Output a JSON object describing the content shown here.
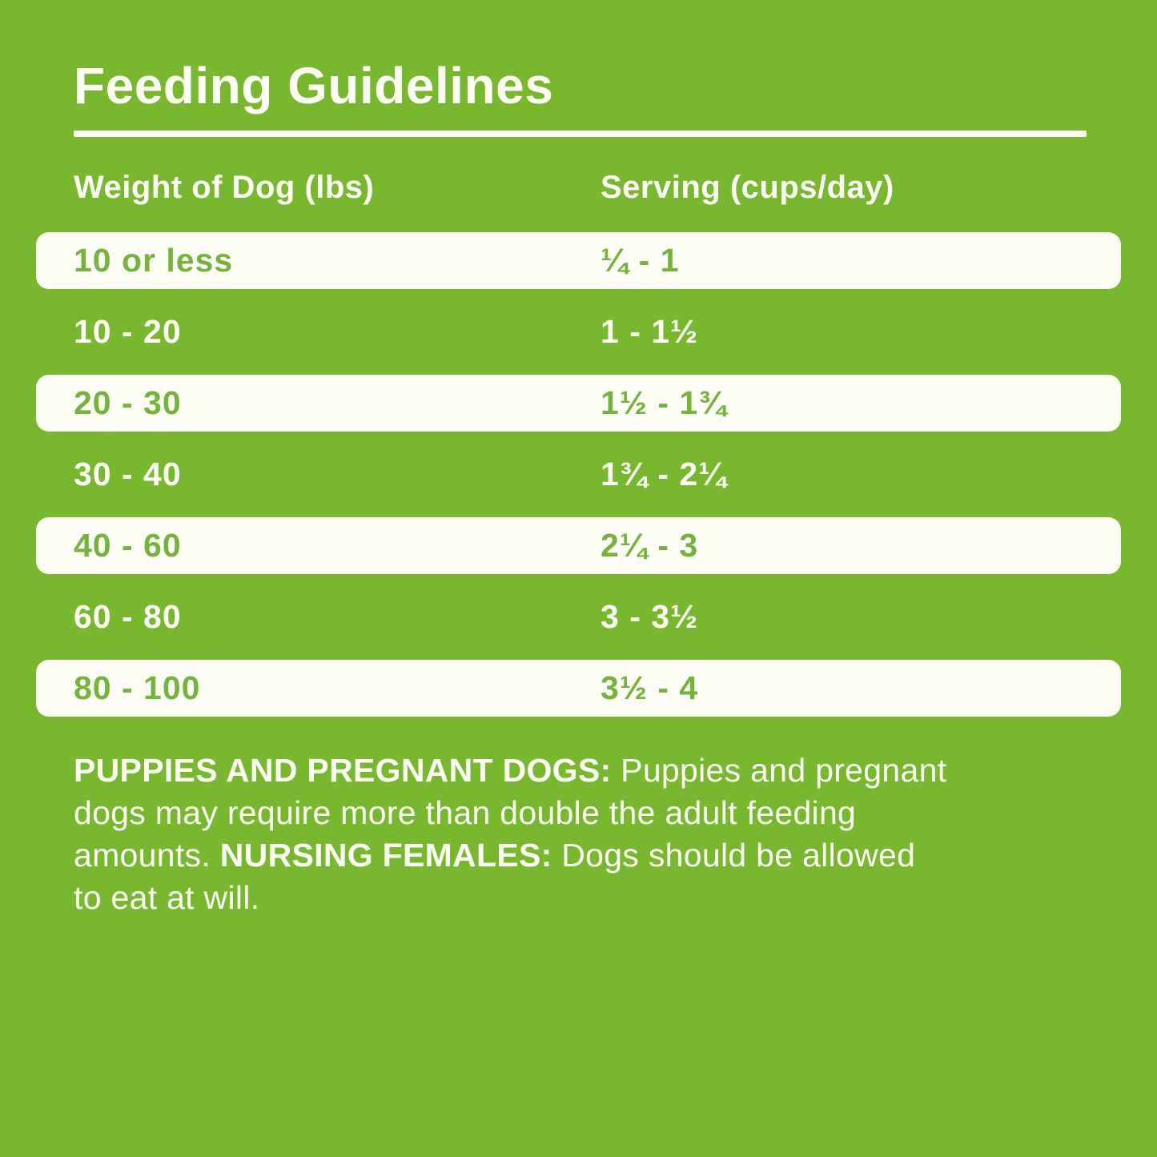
{
  "title": "Feeding Guidelines",
  "colors": {
    "green": "#77B82F",
    "green-text": "#74B43A",
    "white": "#FDFDF6"
  },
  "table": {
    "columns": [
      "Weight of Dog (lbs)",
      "Serving (cups/day)"
    ],
    "rows": [
      {
        "weight": "10 or less",
        "serving": "¼ - 1"
      },
      {
        "weight": "10 - 20",
        "serving": "1 - 1½"
      },
      {
        "weight": "20 - 30",
        "serving": "1½ - 1¾"
      },
      {
        "weight": "30 - 40",
        "serving": "1¾ - 2¼"
      },
      {
        "weight": "40 - 60",
        "serving": "2¼ - 3"
      },
      {
        "weight": "60 - 80",
        "serving": "3 - 3½"
      },
      {
        "weight": "80 - 100",
        "serving": "3½ - 4"
      }
    ]
  },
  "note": {
    "segments": [
      {
        "text": "PUPPIES AND PREGNANT DOGS: ",
        "bold": true
      },
      {
        "text": "Puppies and pregnant\ndogs may require more than double the adult feeding\namounts. ",
        "bold": false
      },
      {
        "text": "NURSING FEMALES: ",
        "bold": true
      },
      {
        "text": "Dogs should be allowed\nto eat at will.",
        "bold": false
      }
    ]
  }
}
